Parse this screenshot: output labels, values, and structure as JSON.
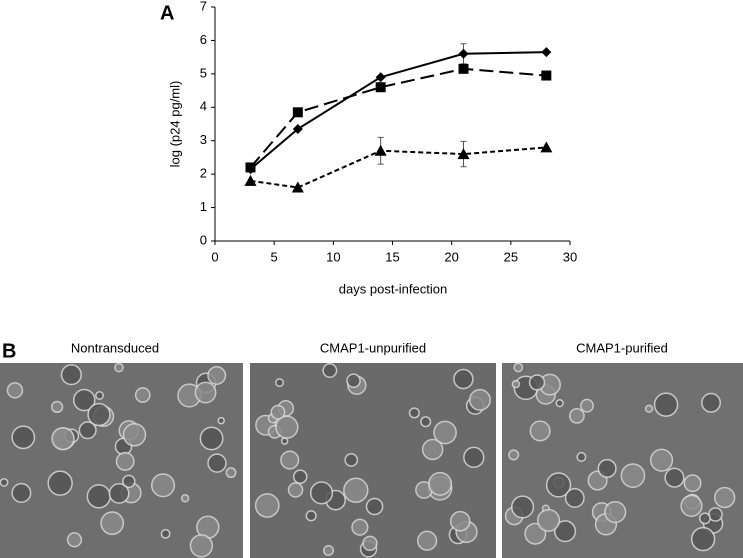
{
  "figure": {
    "panel_a_label": "A",
    "panel_b_label": "B",
    "images": [
      {
        "caption": "Nontransduced"
      },
      {
        "caption": "CMAP1-unpurified"
      },
      {
        "caption": "CMAP1-purified"
      }
    ]
  },
  "chart_data": {
    "type": "line",
    "x_label": "days post-infection",
    "y_label": "log (p24 pg/ml)",
    "x": [
      3,
      7,
      14,
      21,
      28
    ],
    "series": [
      {
        "color": "#000000",
        "marker": "diamond",
        "dash": "solid",
        "values": [
          2.15,
          3.35,
          4.9,
          5.6,
          5.65
        ],
        "errors": [
          null,
          null,
          null,
          0.3,
          null
        ]
      },
      {
        "color": "#000000",
        "marker": "square",
        "dash": "dashed",
        "values": [
          2.2,
          3.85,
          4.6,
          5.15,
          4.95
        ],
        "errors": [
          null,
          null,
          null,
          null,
          null
        ]
      },
      {
        "color": "#000000",
        "marker": "triangle",
        "dash": "dotted",
        "values": [
          1.8,
          1.6,
          2.7,
          2.6,
          2.8
        ],
        "errors": [
          null,
          null,
          0.4,
          0.38,
          null
        ]
      }
    ],
    "xlim": [
      0,
      30
    ],
    "xticks": [
      0,
      5,
      10,
      15,
      20,
      25,
      30
    ],
    "ylim": [
      0,
      7
    ],
    "yticks": [
      0,
      1,
      2,
      3,
      4,
      5,
      6,
      7
    ],
    "grid": false
  }
}
